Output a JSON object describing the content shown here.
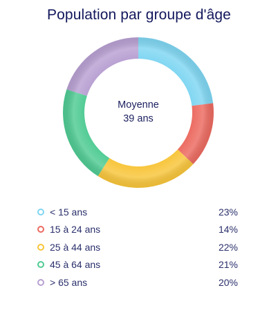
{
  "chart_data": {
    "type": "pie",
    "title": "Population par groupe d'âge",
    "center_label": [
      "Moyenne",
      "39 ans"
    ],
    "categories": [
      "< 15 ans",
      "15 à 24 ans",
      "25 à 44 ans",
      "45 à 64 ans",
      "> 65 ans"
    ],
    "values": [
      23,
      14,
      22,
      21,
      20
    ],
    "value_labels": [
      "23%",
      "14%",
      "22%",
      "21%",
      "20%"
    ],
    "unit": "%",
    "colors": [
      "#7fd6f2",
      "#ec6a60",
      "#f8c53a",
      "#4fcb93",
      "#b8a0d2"
    ],
    "legend_position": "bottom",
    "grid": false
  }
}
